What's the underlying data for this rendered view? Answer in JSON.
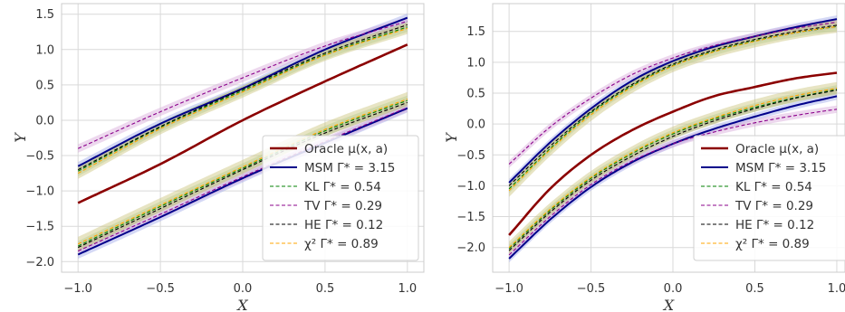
{
  "chart_data": [
    {
      "type": "line",
      "xlabel": "X",
      "ylabel": "Y",
      "xlim": [
        -1.1,
        1.1
      ],
      "ylim": [
        -2.15,
        1.65
      ],
      "xticks": [
        -1.0,
        -0.5,
        0.0,
        0.5,
        1.0
      ],
      "xtick_labels": [
        "−1.0",
        "−0.5",
        "0.0",
        "0.5",
        "1.0"
      ],
      "yticks": [
        -2.0,
        -1.5,
        -1.0,
        -0.5,
        0.0,
        0.5,
        1.0,
        1.5
      ],
      "ytick_labels": [
        "−2.0",
        "−1.5",
        "−1.0",
        "−0.5",
        "0.0",
        "0.5",
        "1.0",
        "1.5"
      ],
      "grid": true,
      "legend_position": "lower-right",
      "series": [
        {
          "name": "Oracle μ(x, a)",
          "color": "#8b0000",
          "style": "solid",
          "x": [
            -1.0,
            -0.5,
            0.0,
            0.5,
            1.0
          ],
          "y": [
            -1.17,
            -0.62,
            0.0,
            0.55,
            1.07
          ]
        },
        {
          "name": "MSM Γ* = 3.15",
          "group": "upper",
          "color": "#00008b",
          "style": "solid",
          "band_color": "#9fa8e8",
          "band": 0.06,
          "x": [
            -1.0,
            -0.5,
            0.0,
            0.5,
            1.0
          ],
          "y": [
            -0.65,
            -0.05,
            0.45,
            1.0,
            1.45
          ]
        },
        {
          "name": "KL Γ* = 0.54",
          "group": "upper",
          "color": "#008000",
          "style": "dashed",
          "band_color": "#a9d59a",
          "band": 0.07,
          "x": [
            -1.0,
            -0.5,
            0.0,
            0.5,
            1.0
          ],
          "y": [
            -0.72,
            -0.1,
            0.42,
            0.93,
            1.32
          ]
        },
        {
          "name": "TV Γ* = 0.29",
          "group": "upper",
          "color": "#8b008b",
          "style": "dashed",
          "band_color": "#d7a8d9",
          "band": 0.06,
          "x": [
            -1.0,
            -0.5,
            0.0,
            0.5,
            1.0
          ],
          "y": [
            -0.4,
            0.12,
            0.6,
            1.05,
            1.4
          ]
        },
        {
          "name": "HE Γ* = 0.12",
          "group": "upper",
          "color": "#000000",
          "style": "dashed",
          "band_color": "#bdbdbd",
          "band": 0.05,
          "x": [
            -1.0,
            -0.5,
            0.0,
            0.5,
            1.0
          ],
          "y": [
            -0.7,
            -0.09,
            0.44,
            0.95,
            1.35
          ]
        },
        {
          "name": "χ² Γ* = 0.89",
          "group": "upper",
          "color": "#ffa500",
          "style": "dashed",
          "band_color": "#c9c47a",
          "band": 0.08,
          "x": [
            -1.0,
            -0.5,
            0.0,
            0.5,
            1.0
          ],
          "y": [
            -0.75,
            -0.12,
            0.4,
            0.92,
            1.3
          ]
        },
        {
          "name": "MSM Γ* = 3.15",
          "group": "lower",
          "color": "#00008b",
          "style": "solid",
          "band_color": "#9fa8e8",
          "band": 0.06,
          "x": [
            -1.0,
            -0.5,
            0.0,
            0.5,
            1.0
          ],
          "y": [
            -1.9,
            -1.37,
            -0.82,
            -0.32,
            0.17
          ]
        },
        {
          "name": "KL Γ* = 0.54",
          "group": "lower",
          "color": "#008000",
          "style": "dashed",
          "band_color": "#a9d59a",
          "band": 0.07,
          "x": [
            -1.0,
            -0.5,
            0.0,
            0.5,
            1.0
          ],
          "y": [
            -1.78,
            -1.22,
            -0.68,
            -0.15,
            0.28
          ]
        },
        {
          "name": "TV Γ* = 0.29",
          "group": "lower",
          "color": "#8b008b",
          "style": "dashed",
          "band_color": "#d7a8d9",
          "band": 0.06,
          "x": [
            -1.0,
            -0.5,
            0.0,
            0.5,
            1.0
          ],
          "y": [
            -1.85,
            -1.33,
            -0.8,
            -0.3,
            0.18
          ]
        },
        {
          "name": "HE Γ* = 0.12",
          "group": "lower",
          "color": "#000000",
          "style": "dashed",
          "band_color": "#bdbdbd",
          "band": 0.05,
          "x": [
            -1.0,
            -0.5,
            0.0,
            0.5,
            1.0
          ],
          "y": [
            -1.8,
            -1.25,
            -0.7,
            -0.18,
            0.25
          ]
        },
        {
          "name": "χ² Γ* = 0.89",
          "group": "lower",
          "color": "#ffa500",
          "style": "dashed",
          "band_color": "#c9c47a",
          "band": 0.1,
          "x": [
            -1.0,
            -0.5,
            0.0,
            0.5,
            1.0
          ],
          "y": [
            -1.75,
            -1.2,
            -0.66,
            -0.13,
            0.3
          ]
        }
      ]
    },
    {
      "type": "line",
      "xlabel": "X",
      "ylabel": "Y",
      "xlim": [
        -1.1,
        1.05
      ],
      "ylim": [
        -2.4,
        1.95
      ],
      "xticks": [
        -1.0,
        -0.5,
        0.0,
        0.5,
        1.0
      ],
      "xtick_labels": [
        "−1.0",
        "−0.5",
        "0.0",
        "0.5",
        "1.0"
      ],
      "yticks": [
        -2.0,
        -1.5,
        -1.0,
        -0.5,
        0.0,
        0.5,
        1.0,
        1.5
      ],
      "ytick_labels": [
        "−2.0",
        "−1.5",
        "−1.0",
        "−0.5",
        "0.0",
        "0.5",
        "1.0",
        "1.5"
      ],
      "grid": true,
      "legend_position": "lower-right",
      "series": [
        {
          "name": "Oracle μ(x, a)",
          "color": "#8b0000",
          "style": "solid",
          "x": [
            -1.0,
            -0.75,
            -0.5,
            -0.25,
            0.0,
            0.25,
            0.5,
            0.75,
            1.0
          ],
          "y": [
            -1.8,
            -1.05,
            -0.5,
            -0.1,
            0.2,
            0.45,
            0.6,
            0.74,
            0.83
          ]
        },
        {
          "name": "MSM Γ* = 3.15",
          "group": "upper",
          "color": "#00008b",
          "style": "solid",
          "band_color": "#9fa8e8",
          "band": 0.06,
          "x": [
            -1.0,
            -0.75,
            -0.5,
            -0.25,
            0.0,
            0.25,
            0.5,
            0.75,
            1.0
          ],
          "y": [
            -0.95,
            -0.3,
            0.25,
            0.7,
            1.02,
            1.25,
            1.42,
            1.57,
            1.7
          ]
        },
        {
          "name": "KL Γ* = 0.54",
          "group": "upper",
          "color": "#008000",
          "style": "dashed",
          "band_color": "#a9d59a",
          "band": 0.07,
          "x": [
            -1.0,
            -0.75,
            -0.5,
            -0.25,
            0.0,
            0.25,
            0.5,
            0.75,
            1.0
          ],
          "y": [
            -1.05,
            -0.4,
            0.18,
            0.62,
            0.95,
            1.18,
            1.35,
            1.48,
            1.58
          ]
        },
        {
          "name": "TV Γ* = 0.29",
          "group": "upper",
          "color": "#8b008b",
          "style": "dashed",
          "band_color": "#d7a8d9",
          "band": 0.06,
          "x": [
            -1.0,
            -0.75,
            -0.5,
            -0.25,
            0.0,
            0.25,
            0.5,
            0.75,
            1.0
          ],
          "y": [
            -0.65,
            -0.05,
            0.42,
            0.8,
            1.07,
            1.27,
            1.42,
            1.55,
            1.65
          ]
        },
        {
          "name": "HE Γ* = 0.12",
          "group": "upper",
          "color": "#000000",
          "style": "dashed",
          "band_color": "#bdbdbd",
          "band": 0.05,
          "x": [
            -1.0,
            -0.75,
            -0.5,
            -0.25,
            0.0,
            0.25,
            0.5,
            0.75,
            1.0
          ],
          "y": [
            -1.0,
            -0.36,
            0.2,
            0.64,
            0.97,
            1.2,
            1.37,
            1.5,
            1.6
          ]
        },
        {
          "name": "χ² Γ* = 0.89",
          "group": "upper",
          "color": "#ffa500",
          "style": "dashed",
          "band_color": "#c9c47a",
          "band": 0.1,
          "x": [
            -1.0,
            -0.75,
            -0.5,
            -0.25,
            0.0,
            0.25,
            0.5,
            0.75,
            1.0
          ],
          "y": [
            -1.08,
            -0.42,
            0.15,
            0.6,
            0.94,
            1.17,
            1.34,
            1.48,
            1.58
          ]
        },
        {
          "name": "MSM Γ* = 3.15",
          "group": "lower",
          "color": "#00008b",
          "style": "solid",
          "band_color": "#9fa8e8",
          "band": 0.06,
          "x": [
            -1.0,
            -0.75,
            -0.5,
            -0.25,
            0.0,
            0.25,
            0.5,
            0.75,
            1.0
          ],
          "y": [
            -2.18,
            -1.55,
            -1.02,
            -0.62,
            -0.32,
            -0.08,
            0.12,
            0.3,
            0.45
          ]
        },
        {
          "name": "KL Γ* = 0.54",
          "group": "lower",
          "color": "#008000",
          "style": "dashed",
          "band_color": "#a9d59a",
          "band": 0.07,
          "x": [
            -1.0,
            -0.75,
            -0.5,
            -0.25,
            0.0,
            0.25,
            0.5,
            0.75,
            1.0
          ],
          "y": [
            -2.02,
            -1.4,
            -0.88,
            -0.48,
            -0.16,
            0.08,
            0.27,
            0.43,
            0.56
          ]
        },
        {
          "name": "TV Γ* = 0.29",
          "group": "lower",
          "color": "#8b008b",
          "style": "dashed",
          "band_color": "#d7a8d9",
          "band": 0.06,
          "x": [
            -1.0,
            -0.75,
            -0.5,
            -0.25,
            0.0,
            0.25,
            0.5,
            0.75,
            1.0
          ],
          "y": [
            -2.12,
            -1.5,
            -0.98,
            -0.6,
            -0.32,
            -0.13,
            0.02,
            0.14,
            0.24
          ]
        },
        {
          "name": "HE Γ* = 0.12",
          "group": "lower",
          "color": "#000000",
          "style": "dashed",
          "band_color": "#bdbdbd",
          "band": 0.05,
          "x": [
            -1.0,
            -0.75,
            -0.5,
            -0.25,
            0.0,
            0.25,
            0.5,
            0.75,
            1.0
          ],
          "y": [
            -2.05,
            -1.43,
            -0.91,
            -0.52,
            -0.2,
            0.05,
            0.25,
            0.42,
            0.55
          ]
        },
        {
          "name": "χ² Γ* = 0.89",
          "group": "lower",
          "color": "#ffa500",
          "style": "dashed",
          "band_color": "#c9c47a",
          "band": 0.1,
          "x": [
            -1.0,
            -0.75,
            -0.5,
            -0.25,
            0.0,
            0.25,
            0.5,
            0.75,
            1.0
          ],
          "y": [
            -2.0,
            -1.38,
            -0.86,
            -0.46,
            -0.14,
            0.1,
            0.3,
            0.46,
            0.58
          ]
        }
      ]
    }
  ]
}
